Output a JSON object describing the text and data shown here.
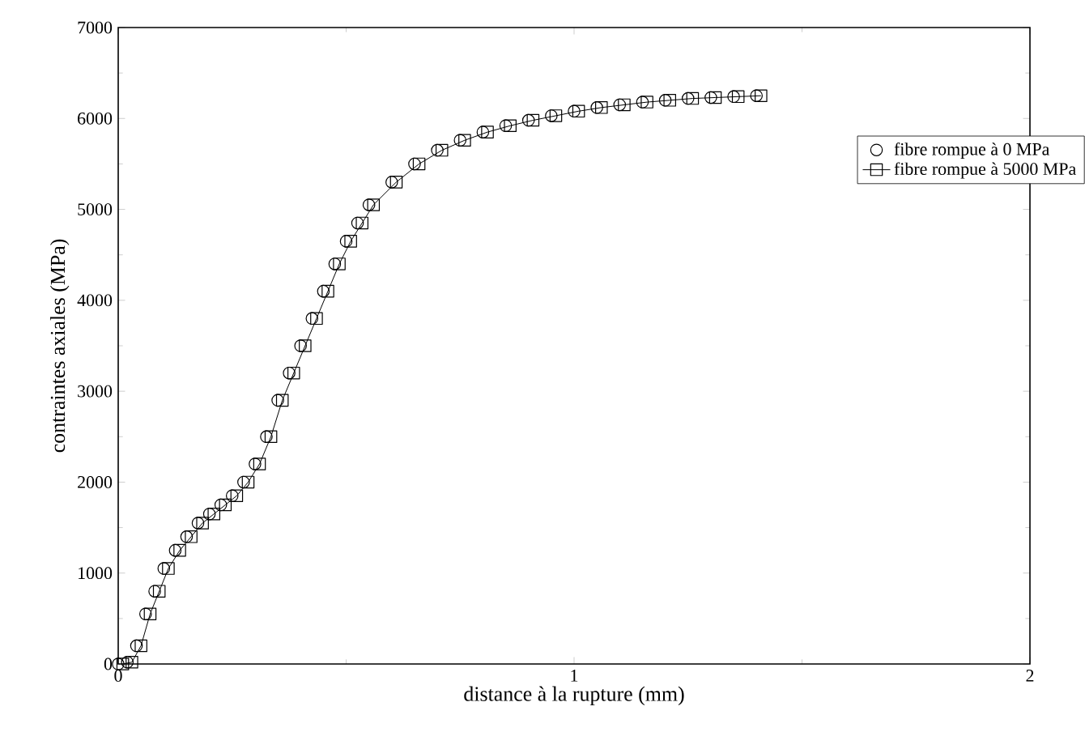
{
  "chart_data": {
    "type": "scatter",
    "xlabel": "distance à la rupture (mm)",
    "ylabel": "contraintes axiales (MPa)",
    "xlim": [
      0,
      2
    ],
    "ylim": [
      0,
      7000
    ],
    "xticks": [
      0,
      1,
      2
    ],
    "yticks": [
      0,
      1000,
      2000,
      3000,
      4000,
      5000,
      6000,
      7000
    ],
    "legend": "top right",
    "x": [
      0,
      0.02,
      0.04,
      0.06,
      0.08,
      0.1,
      0.125,
      0.15,
      0.175,
      0.2,
      0.225,
      0.25,
      0.275,
      0.3,
      0.325,
      0.35,
      0.375,
      0.4,
      0.425,
      0.45,
      0.475,
      0.5,
      0.525,
      0.55,
      0.6,
      0.65,
      0.7,
      0.75,
      0.8,
      0.85,
      0.9,
      0.95,
      1.0,
      1.05,
      1.1,
      1.15,
      1.2,
      1.25,
      1.3,
      1.35,
      1.4
    ],
    "series": [
      {
        "name": "fibre rompue à 0 MPa",
        "color": "#000000",
        "marker": "circle",
        "values": [
          0,
          20,
          200,
          550,
          800,
          1050,
          1250,
          1400,
          1550,
          1650,
          1750,
          1850,
          2000,
          2200,
          2500,
          2900,
          3200,
          3500,
          3800,
          4100,
          4400,
          4650,
          4850,
          5050,
          5300,
          5500,
          5650,
          5760,
          5850,
          5920,
          5980,
          6030,
          6080,
          6120,
          6150,
          6180,
          6200,
          6220,
          6230,
          6240,
          6250
        ]
      },
      {
        "name": "fibre rompue à 5000 MPa",
        "type": "line",
        "color": "#000000",
        "marker": "square",
        "line_style": "solid",
        "x": [
          0.01,
          0.03,
          0.05,
          0.07,
          0.09,
          0.11,
          0.135,
          0.16,
          0.185,
          0.21,
          0.235,
          0.26,
          0.285,
          0.31,
          0.335,
          0.36,
          0.385,
          0.41,
          0.435,
          0.46,
          0.485,
          0.51,
          0.535,
          0.56,
          0.61,
          0.66,
          0.71,
          0.76,
          0.81,
          0.86,
          0.91,
          0.96,
          1.01,
          1.06,
          1.11,
          1.16,
          1.21,
          1.26,
          1.31,
          1.36,
          1.41
        ],
        "values": [
          0,
          20,
          200,
          550,
          800,
          1050,
          1250,
          1400,
          1550,
          1650,
          1750,
          1850,
          2000,
          2200,
          2500,
          2900,
          3200,
          3500,
          3800,
          4100,
          4400,
          4650,
          4850,
          5050,
          5300,
          5500,
          5650,
          5760,
          5850,
          5920,
          5980,
          6030,
          6080,
          6120,
          6150,
          6180,
          6200,
          6220,
          6230,
          6240,
          6250
        ]
      }
    ]
  }
}
